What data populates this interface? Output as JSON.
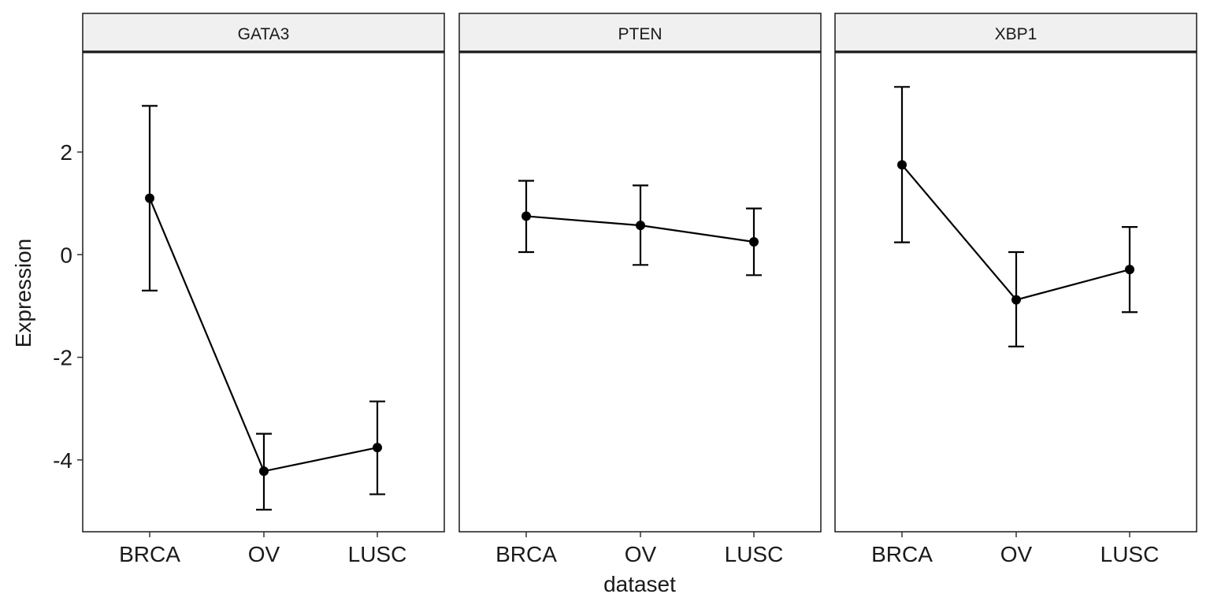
{
  "chart_data": {
    "type": "line",
    "xlabel": "dataset",
    "ylabel": "Expression",
    "categories": [
      "BRCA",
      "OV",
      "LUSC"
    ],
    "ylim": [
      -5.4,
      3.95
    ],
    "yticks": [
      2,
      0,
      -2,
      -4
    ],
    "ytick_labels": [
      "2",
      "0",
      "-2",
      "-4"
    ],
    "grid": false,
    "error_bars": true,
    "panels": [
      {
        "strip": "GATA3",
        "mean": [
          1.1,
          -4.22,
          -3.76
        ],
        "lower": [
          -0.7,
          -4.97,
          -4.67
        ],
        "upper": [
          2.9,
          -3.49,
          -2.86
        ]
      },
      {
        "strip": "PTEN",
        "mean": [
          0.75,
          0.57,
          0.25
        ],
        "lower": [
          0.05,
          -0.2,
          -0.4
        ],
        "upper": [
          1.44,
          1.35,
          0.9
        ]
      },
      {
        "strip": "XBP1",
        "mean": [
          1.75,
          -0.88,
          -0.29
        ],
        "lower": [
          0.24,
          -1.79,
          -1.12
        ],
        "upper": [
          3.27,
          0.05,
          0.54
        ]
      }
    ],
    "colors": {
      "line": "#000000",
      "point": "#000000",
      "strip_fill": "#f0f0f0",
      "panel_border": "#1a1a1a"
    }
  }
}
